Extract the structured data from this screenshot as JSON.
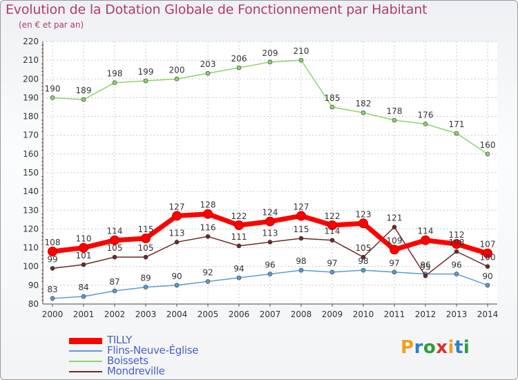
{
  "header": {
    "title": "Evolution de la Dotation Globale de Fonctionnement par Habitant",
    "subtitle": "(en € et par an)"
  },
  "logo": {
    "letters": [
      "P",
      "r",
      "o",
      "x",
      "i",
      "t",
      "i"
    ],
    "colors": [
      "#f0a020",
      "#2a7fd0",
      "#2a9f3a",
      "#d83030",
      "#f0a020",
      "#2a7fd0",
      "#2a9f3a"
    ]
  },
  "chart_data": {
    "type": "line",
    "title": "Evolution de la Dotation Globale de Fonctionnement par Habitant",
    "subtitle": "(en € et par an)",
    "x": [
      "2000",
      "2001",
      "2002",
      "2003",
      "2004",
      "2005",
      "2006",
      "2007",
      "2008",
      "2009",
      "2010",
      "2011",
      "2012",
      "2013",
      "2014"
    ],
    "ylim": [
      80,
      220
    ],
    "yticks": [
      80,
      90,
      100,
      110,
      120,
      130,
      140,
      150,
      160,
      170,
      180,
      190,
      200,
      210,
      220
    ],
    "grid": true,
    "legend_position": "bottom-left",
    "series": [
      {
        "name": "TILLY",
        "color": "#ff0000",
        "values": [
          108,
          110,
          114,
          115,
          127,
          128,
          122,
          124,
          127,
          122,
          123,
          109,
          114,
          112,
          107
        ]
      },
      {
        "name": "Flins-Neuve-Église",
        "color": "#5b9bd5",
        "values": [
          83,
          84,
          87,
          89,
          90,
          92,
          94,
          96,
          98,
          97,
          98,
          97,
          96,
          96,
          90
        ]
      },
      {
        "name": "Boissets",
        "color": "#8ed26b",
        "values": [
          190,
          189,
          198,
          199,
          200,
          203,
          206,
          209,
          210,
          185,
          182,
          178,
          176,
          171,
          160
        ]
      },
      {
        "name": "Mondreville",
        "color": "#6b2a2a",
        "values": [
          99,
          101,
          105,
          105,
          113,
          116,
          111,
          113,
          115,
          114,
          105,
          121,
          95,
          108,
          100
        ]
      }
    ]
  }
}
